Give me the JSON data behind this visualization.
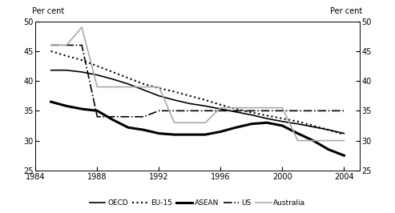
{
  "ylabel_left": "Per cent",
  "ylabel_right": "Per cent",
  "ylim": [
    25,
    50
  ],
  "yticks": [
    25,
    30,
    35,
    40,
    45,
    50
  ],
  "xlim": [
    1984,
    2005
  ],
  "xticks": [
    1984,
    1988,
    1992,
    1996,
    2000,
    2004
  ],
  "background_color": "#ffffff",
  "oecd_x": [
    1985,
    1986,
    1987,
    1988,
    1989,
    1990,
    1991,
    1992,
    1993,
    1994,
    1995,
    1996,
    1997,
    1998,
    1999,
    2000,
    2001,
    2002,
    2003,
    2004
  ],
  "oecd_y": [
    41.8,
    41.8,
    41.5,
    41.0,
    40.3,
    39.5,
    38.5,
    37.5,
    36.8,
    36.2,
    35.8,
    35.3,
    34.8,
    34.3,
    33.7,
    33.2,
    32.8,
    32.3,
    31.8,
    31.2
  ],
  "eu15_x": [
    1985,
    1986,
    1987,
    1988,
    1989,
    1990,
    1991,
    1992,
    1993,
    1994,
    1995,
    1996,
    1997,
    1998,
    1999,
    2000,
    2001,
    2002,
    2003,
    2004
  ],
  "eu15_y": [
    45.0,
    44.2,
    43.5,
    42.5,
    41.5,
    40.5,
    39.5,
    38.8,
    38.2,
    37.5,
    36.8,
    36.0,
    35.3,
    34.7,
    34.2,
    33.7,
    33.2,
    32.5,
    31.8,
    31.0
  ],
  "asean_x": [
    1985,
    1986,
    1987,
    1988,
    1989,
    1990,
    1991,
    1992,
    1993,
    1994,
    1995,
    1996,
    1997,
    1998,
    1999,
    2000,
    2001,
    2002,
    2003,
    2004
  ],
  "asean_y": [
    36.5,
    35.8,
    35.3,
    35.0,
    33.5,
    32.2,
    31.8,
    31.2,
    31.0,
    31.0,
    31.0,
    31.5,
    32.2,
    32.8,
    33.0,
    32.5,
    31.2,
    30.0,
    28.5,
    27.5
  ],
  "us_x": [
    1985,
    1986,
    1987,
    1988,
    1989,
    1990,
    1991,
    1992,
    1993,
    1994,
    1995,
    1996,
    1997,
    1998,
    1999,
    2000,
    2001,
    2002,
    2003,
    2004
  ],
  "us_y": [
    46.0,
    46.0,
    46.0,
    34.0,
    34.0,
    34.0,
    34.0,
    35.0,
    35.0,
    35.0,
    35.0,
    35.0,
    35.0,
    35.0,
    35.0,
    35.0,
    35.0,
    35.0,
    35.0,
    35.0
  ],
  "aus_x": [
    1985,
    1986,
    1987,
    1988,
    1989,
    1990,
    1991,
    1992,
    1993,
    1994,
    1995,
    1996,
    1997,
    1998,
    1999,
    2000,
    2001,
    2002,
    2003,
    2004
  ],
  "aus_y": [
    46.0,
    46.0,
    49.0,
    39.0,
    39.0,
    39.0,
    39.0,
    39.0,
    33.0,
    33.0,
    33.0,
    35.5,
    35.5,
    35.5,
    35.5,
    35.5,
    30.0,
    30.0,
    30.0,
    30.0
  ],
  "legend_labels": [
    "OECD",
    "EU-15",
    "ASEAN",
    "US",
    "Australia"
  ]
}
